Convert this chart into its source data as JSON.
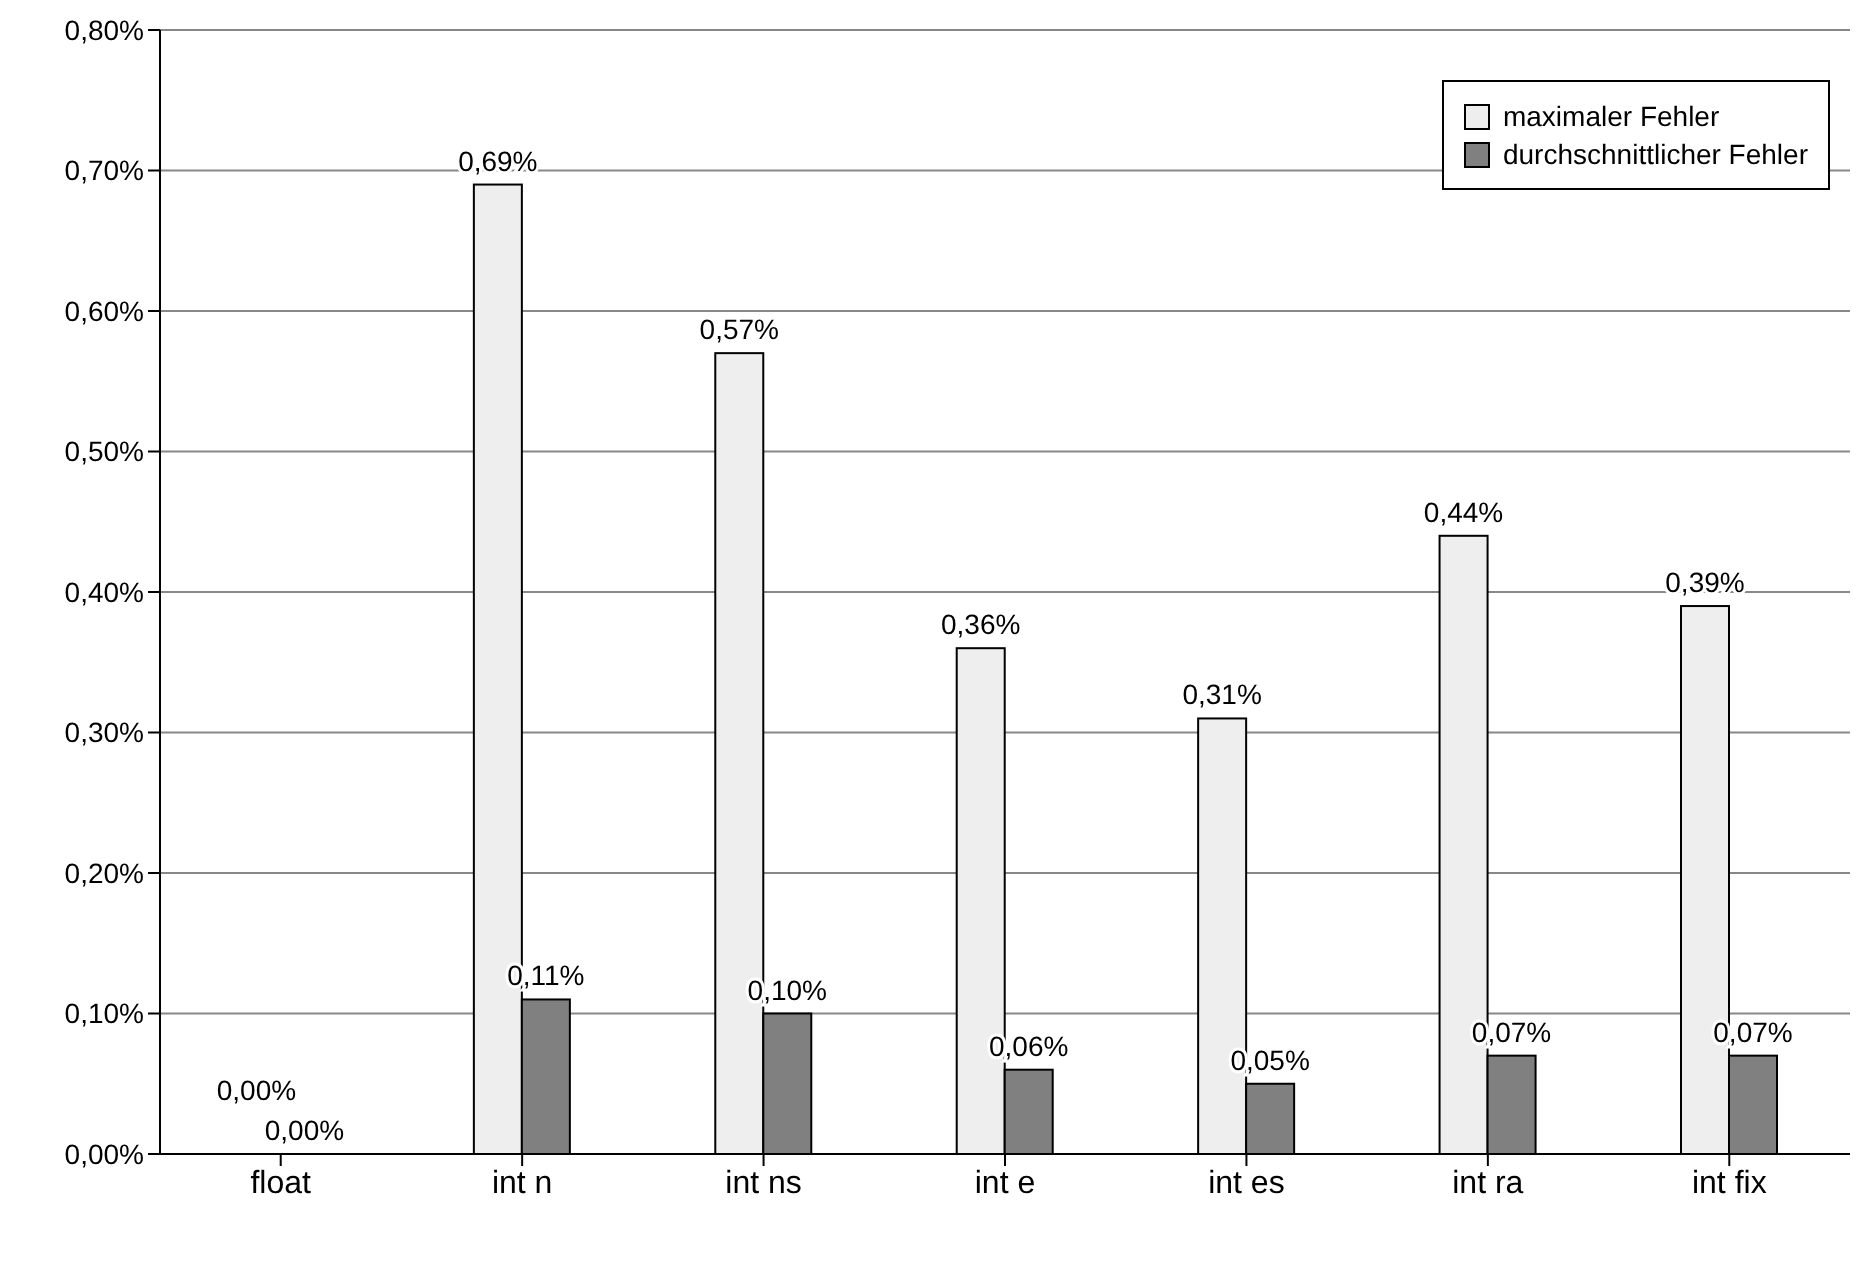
{
  "chart_data": {
    "type": "bar",
    "categories": [
      "float",
      "int n",
      "int ns",
      "int e",
      "int es",
      "int ra",
      "int fix"
    ],
    "series": [
      {
        "name": "maximaler Fehler",
        "color": "#eeeeee",
        "values": [
          0,
          0.69,
          0.57,
          0.36,
          0.31,
          0.44,
          0.39
        ],
        "value_labels": [
          "0,00%",
          "0,69%",
          "0,57%",
          "0,36%",
          "0,31%",
          "0,44%",
          "0,39%"
        ]
      },
      {
        "name": "durchschnittlicher Fehler",
        "color": "#808080",
        "values": [
          0,
          0.11,
          0.1,
          0.06,
          0.05,
          0.07,
          0.07
        ],
        "value_labels": [
          "0,00%",
          "0,11%",
          "0,10%",
          "0,06%",
          "0,05%",
          "0,07%",
          "0,07%"
        ]
      }
    ],
    "ylim": [
      0,
      0.8
    ],
    "yticks": [
      {
        "value": 0,
        "label": "0,00%"
      },
      {
        "value": 0.1,
        "label": "0,10%"
      },
      {
        "value": 0.2,
        "label": "0,20%"
      },
      {
        "value": 0.3,
        "label": "0,30%"
      },
      {
        "value": 0.4,
        "label": "0,40%"
      },
      {
        "value": 0.5,
        "label": "0,50%"
      },
      {
        "value": 0.6,
        "label": "0,60%"
      },
      {
        "value": 0.7,
        "label": "0,70%"
      },
      {
        "value": 0.8,
        "label": "0,80%"
      }
    ],
    "grid": "y",
    "legend": "top right"
  }
}
